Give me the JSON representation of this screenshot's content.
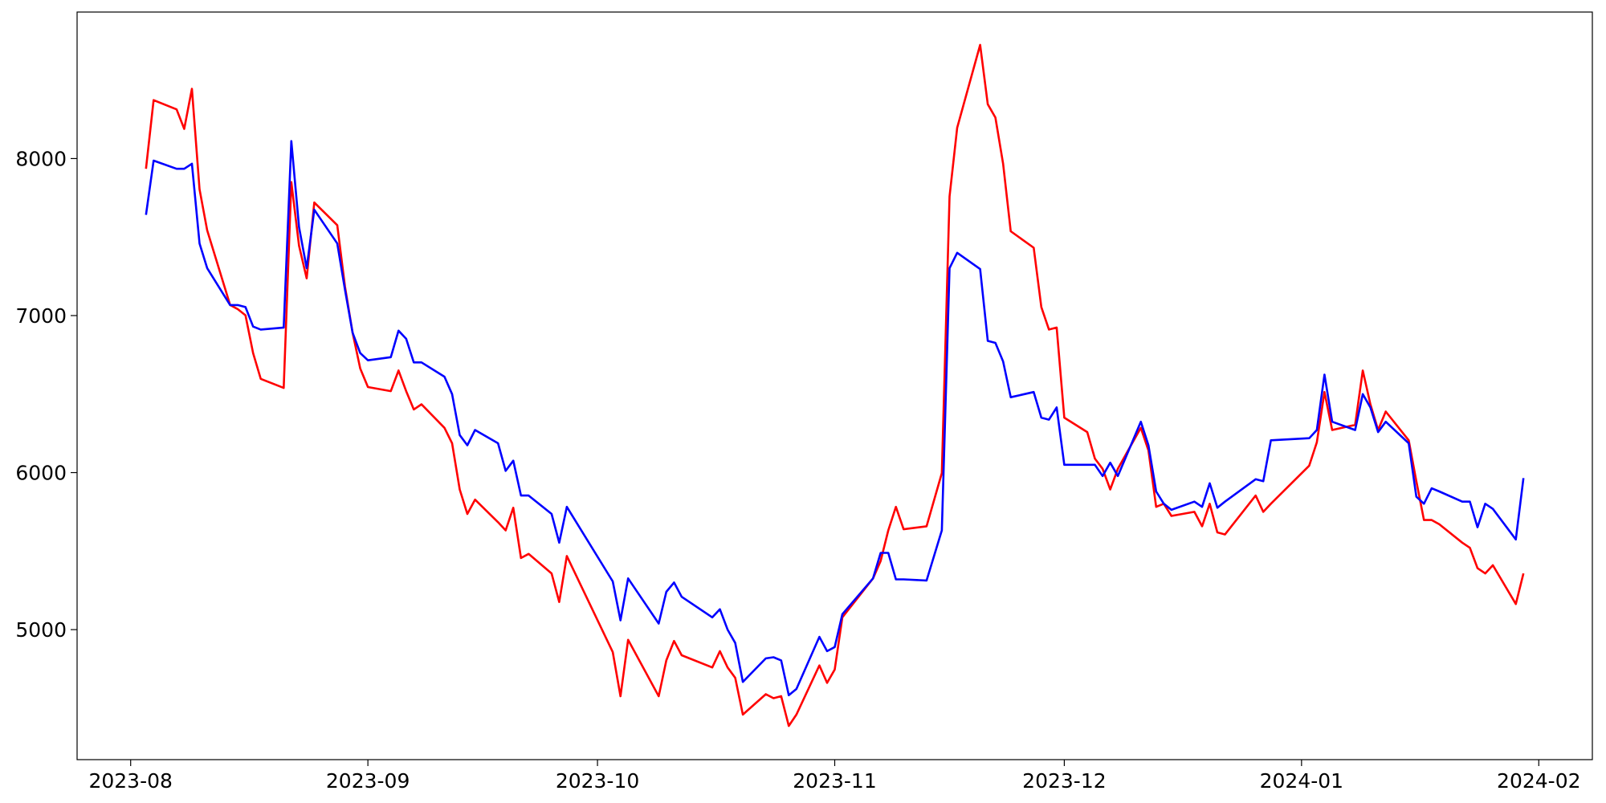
{
  "chart_data": {
    "type": "line",
    "x": [
      "2023-08-03",
      "2023-08-04",
      "2023-08-07",
      "2023-08-08",
      "2023-08-09",
      "2023-08-10",
      "2023-08-11",
      "2023-08-14",
      "2023-08-15",
      "2023-08-16",
      "2023-08-17",
      "2023-08-18",
      "2023-08-21",
      "2023-08-22",
      "2023-08-23",
      "2023-08-24",
      "2023-08-25",
      "2023-08-28",
      "2023-08-29",
      "2023-08-30",
      "2023-08-31",
      "2023-09-01",
      "2023-09-04",
      "2023-09-05",
      "2023-09-06",
      "2023-09-07",
      "2023-09-08",
      "2023-09-11",
      "2023-09-12",
      "2023-09-13",
      "2023-09-14",
      "2023-09-15",
      "2023-09-18",
      "2023-09-19",
      "2023-09-20",
      "2023-09-21",
      "2023-09-22",
      "2023-09-25",
      "2023-09-26",
      "2023-09-27",
      "2023-10-03",
      "2023-10-04",
      "2023-10-05",
      "2023-10-09",
      "2023-10-10",
      "2023-10-11",
      "2023-10-12",
      "2023-10-16",
      "2023-10-17",
      "2023-10-18",
      "2023-10-19",
      "2023-10-20",
      "2023-10-23",
      "2023-10-24",
      "2023-10-25",
      "2023-10-26",
      "2023-10-27",
      "2023-10-30",
      "2023-10-31",
      "2023-11-01",
      "2023-11-02",
      "2023-11-06",
      "2023-11-07",
      "2023-11-08",
      "2023-11-09",
      "2023-11-10",
      "2023-11-13",
      "2023-11-15",
      "2023-11-16",
      "2023-11-17",
      "2023-11-20",
      "2023-11-21",
      "2023-11-22",
      "2023-11-23",
      "2023-11-24",
      "2023-11-27",
      "2023-11-28",
      "2023-11-29",
      "2023-11-30",
      "2023-12-01",
      "2023-12-04",
      "2023-12-05",
      "2023-12-06",
      "2023-12-07",
      "2023-12-08",
      "2023-12-11",
      "2023-12-12",
      "2023-12-13",
      "2023-12-14",
      "2023-12-15",
      "2023-12-18",
      "2023-12-19",
      "2023-12-20",
      "2023-12-21",
      "2023-12-22",
      "2023-12-26",
      "2023-12-27",
      "2023-12-28",
      "2024-01-02",
      "2024-01-03",
      "2024-01-04",
      "2024-01-05",
      "2024-01-08",
      "2024-01-09",
      "2024-01-10",
      "2024-01-11",
      "2024-01-12",
      "2024-01-15",
      "2024-01-16",
      "2024-01-17",
      "2024-01-18",
      "2024-01-19",
      "2024-01-22",
      "2024-01-23",
      "2024-01-24",
      "2024-01-25",
      "2024-01-26",
      "2024-01-29",
      "2024-01-30"
    ],
    "series": [
      {
        "color": "#ff0000",
        "values": [
          7935,
          8372,
          8313,
          8189,
          8444,
          7804,
          7543,
          7067,
          7041,
          7002,
          6761,
          6597,
          6539,
          7850,
          7445,
          7237,
          7720,
          7576,
          7185,
          6891,
          6663,
          6545,
          6519,
          6650,
          6519,
          6402,
          6435,
          6285,
          6187,
          5893,
          5737,
          5828,
          5684,
          5632,
          5776,
          5456,
          5482,
          5358,
          5176,
          5469,
          4857,
          4576,
          4935,
          4576,
          4804,
          4928,
          4837,
          4759,
          4863,
          4759,
          4693,
          4459,
          4589,
          4563,
          4576,
          4387,
          4459,
          4772,
          4661,
          4746,
          5078,
          5326,
          5437,
          5632,
          5782,
          5639,
          5658,
          5997,
          7759,
          8196,
          8724,
          8346,
          8261,
          7967,
          7537,
          7432,
          7054,
          6911,
          6924,
          6350,
          6258,
          6089,
          6024,
          5893,
          6024,
          6285,
          6141,
          5782,
          5802,
          5724,
          5750,
          5658,
          5802,
          5619,
          5606,
          5854,
          5750,
          5802,
          6044,
          6193,
          6513,
          6271,
          6304,
          6650,
          6435,
          6271,
          6389,
          6206,
          5945,
          5698,
          5698,
          5671,
          5554,
          5521,
          5391,
          5358,
          5410,
          5163,
          5358
        ]
      },
      {
        "color": "#0000ff",
        "values": [
          7641,
          7987,
          7935,
          7935,
          7967,
          7459,
          7302,
          7067,
          7067,
          7054,
          6930,
          6911,
          6924,
          8111,
          7563,
          7302,
          7674,
          7459,
          7165,
          6891,
          6761,
          6715,
          6735,
          6904,
          6852,
          6702,
          6702,
          6611,
          6500,
          6239,
          6174,
          6271,
          6187,
          6011,
          6076,
          5854,
          5854,
          5737,
          5554,
          5782,
          5307,
          5059,
          5326,
          5039,
          5241,
          5300,
          5209,
          5078,
          5130,
          5000,
          4915,
          4667,
          4817,
          4824,
          4804,
          4582,
          4622,
          4954,
          4863,
          4889,
          5098,
          5326,
          5489,
          5489,
          5320,
          5320,
          5313,
          5632,
          7302,
          7400,
          7296,
          6839,
          6826,
          6708,
          6480,
          6513,
          6350,
          6337,
          6415,
          6050,
          6050,
          6050,
          5978,
          6063,
          5978,
          6324,
          6174,
          5880,
          5802,
          5763,
          5815,
          5782,
          5932,
          5776,
          5815,
          5958,
          5945,
          6206,
          6219,
          6271,
          6624,
          6324,
          6271,
          6500,
          6415,
          6258,
          6324,
          6187,
          5847,
          5802,
          5900,
          5880,
          5815,
          5815,
          5652,
          5802,
          5769,
          5574,
          5965
        ]
      }
    ],
    "xlim": [
      "2023-07-25",
      "2024-02-08"
    ],
    "xticks": [
      {
        "value": "2023-08-01",
        "label": "2023-08"
      },
      {
        "value": "2023-09-01",
        "label": "2023-09"
      },
      {
        "value": "2023-10-01",
        "label": "2023-10"
      },
      {
        "value": "2023-11-01",
        "label": "2023-11"
      },
      {
        "value": "2023-12-01",
        "label": "2023-12"
      },
      {
        "value": "2024-01-01",
        "label": "2024-01"
      },
      {
        "value": "2024-02-01",
        "label": "2024-02"
      }
    ],
    "ylim": [
      4172,
      8933
    ],
    "yticks": [
      5000,
      6000,
      7000,
      8000
    ],
    "grid": false
  }
}
